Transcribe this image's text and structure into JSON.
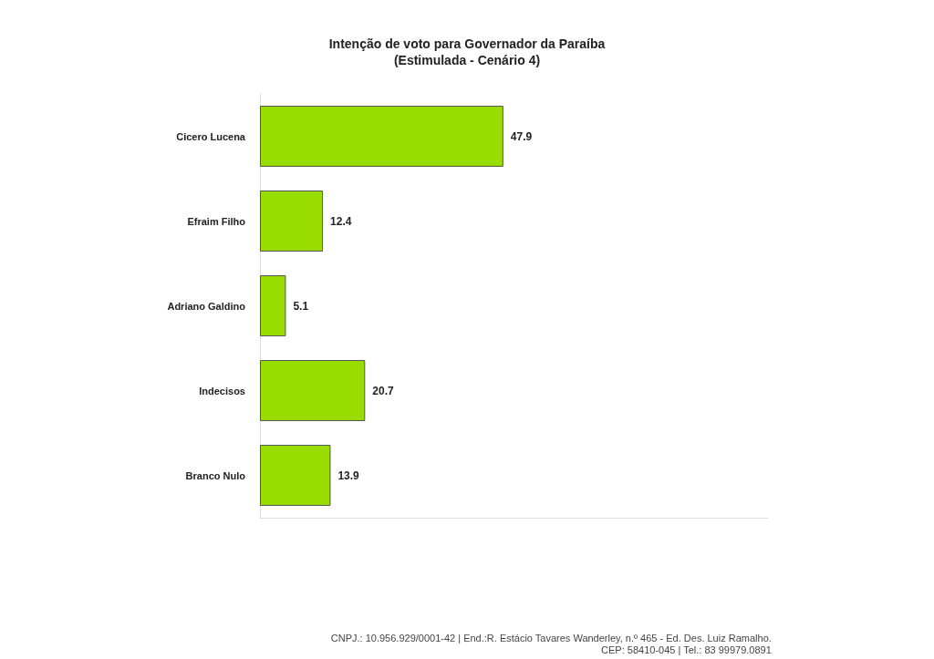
{
  "chart_data": {
    "type": "bar",
    "orientation": "horizontal",
    "title": "Intenção de voto para Governador da Paraíba\n(Estimulada - Cenário 4)",
    "categories": [
      "Cicero Lucena",
      "Efraim Filho",
      "Adriano Galdino",
      "Indecisos",
      "Branco Nulo"
    ],
    "values": [
      47.9,
      12.4,
      5.1,
      20.7,
      13.9
    ],
    "color": "#99dd00",
    "data_labels": true,
    "xlim": [
      0,
      100
    ],
    "tick_labels": "y",
    "grid": false,
    "annotations": [
      "CNPJ.: 10.956.929/0001-42 | End.:R. Estácio Tavares Wanderley, n.º 465 - Ed. Des. Luiz Ramalho.",
      "CEP: 58410-045 | Tel.: 83 99979.0891"
    ]
  }
}
